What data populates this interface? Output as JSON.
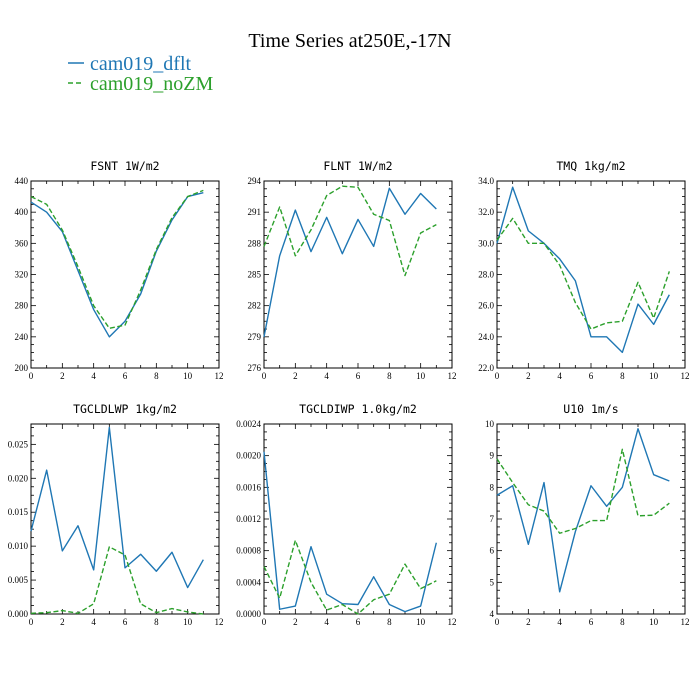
{
  "title": "Time Series at250E,-17N",
  "legend": [
    {
      "label": "cam019_dflt",
      "color": "#1f77b4",
      "dash": "solid"
    },
    {
      "label": "cam019_noZM",
      "color": "#2ca02c",
      "dash": "dashed"
    }
  ],
  "chart_data": [
    {
      "type": "line",
      "title": "FSNT   1W/m2",
      "xlim": [
        0,
        12
      ],
      "xticks": [
        0,
        2,
        4,
        6,
        8,
        10,
        12
      ],
      "ylim": [
        200,
        440
      ],
      "yticks": [
        200,
        240,
        280,
        320,
        360,
        400,
        440
      ],
      "yticklabels": [
        "200",
        "240",
        "280",
        "320",
        "360",
        "400",
        "440"
      ],
      "x": [
        0,
        1,
        2,
        3,
        4,
        5,
        6,
        7,
        8,
        9,
        10,
        11
      ],
      "series": [
        {
          "name": "cam019_dflt",
          "values": [
            413,
            400,
            375,
            325,
            275,
            240,
            260,
            295,
            350,
            390,
            420,
            425
          ]
        },
        {
          "name": "cam019_noZM",
          "values": [
            420,
            410,
            377,
            330,
            280,
            251,
            255,
            300,
            352,
            393,
            420,
            428
          ]
        }
      ]
    },
    {
      "type": "line",
      "title": "FLNT   1W/m2",
      "xlim": [
        0,
        12
      ],
      "xticks": [
        0,
        2,
        4,
        6,
        8,
        10,
        12
      ],
      "ylim": [
        276,
        294
      ],
      "yticks": [
        276,
        279,
        282,
        285,
        288,
        291,
        294
      ],
      "yticklabels": [
        "276",
        "279",
        "282",
        "285",
        "288",
        "291",
        "294"
      ],
      "x": [
        0,
        1,
        2,
        3,
        4,
        5,
        6,
        7,
        8,
        9,
        10,
        11
      ],
      "series": [
        {
          "name": "cam019_dflt",
          "values": [
            279.0,
            286.8,
            291.2,
            287.2,
            290.5,
            287.0,
            290.3,
            287.7,
            293.3,
            290.8,
            292.8,
            291.3
          ]
        },
        {
          "name": "cam019_noZM",
          "values": [
            287.7,
            291.5,
            286.8,
            289.3,
            292.6,
            293.5,
            293.4,
            290.8,
            290.2,
            284.9,
            289.0,
            289.8
          ]
        }
      ]
    },
    {
      "type": "line",
      "title": "TMQ   1kg/m2",
      "xlim": [
        0,
        12
      ],
      "xticks": [
        0,
        2,
        4,
        6,
        8,
        10,
        12
      ],
      "ylim": [
        22,
        34
      ],
      "yticks": [
        22,
        24,
        26,
        28,
        30,
        32,
        34
      ],
      "yticklabels": [
        "22.0",
        "24.0",
        "26.0",
        "28.0",
        "30.0",
        "32.0",
        "34.0"
      ],
      "x": [
        0,
        1,
        2,
        3,
        4,
        5,
        6,
        7,
        8,
        9,
        10,
        11
      ],
      "series": [
        {
          "name": "cam019_dflt",
          "values": [
            30.0,
            33.6,
            30.8,
            30.0,
            29.0,
            27.6,
            24.0,
            24.0,
            23.0,
            26.1,
            24.8,
            26.7
          ]
        },
        {
          "name": "cam019_noZM",
          "values": [
            30.2,
            31.6,
            30.0,
            30.0,
            28.6,
            26.2,
            24.5,
            24.9,
            25.0,
            27.5,
            25.2,
            28.2
          ]
        }
      ]
    },
    {
      "type": "line",
      "title": "TGCLDLWP   1kg/m2",
      "xlim": [
        0,
        12
      ],
      "xticks": [
        0,
        2,
        4,
        6,
        8,
        10,
        12
      ],
      "ylim": [
        0,
        0.028
      ],
      "yticks": [
        0,
        0.005,
        0.01,
        0.015,
        0.02,
        0.025
      ],
      "yticklabels": [
        "0.000",
        "0.005",
        "0.010",
        "0.015",
        "0.020",
        "0.025"
      ],
      "x": [
        0,
        1,
        2,
        3,
        4,
        5,
        6,
        7,
        8,
        9,
        10,
        11
      ],
      "series": [
        {
          "name": "cam019_dflt",
          "values": [
            0.0122,
            0.0212,
            0.0093,
            0.013,
            0.0065,
            0.0275,
            0.0068,
            0.0088,
            0.0063,
            0.0091,
            0.0039,
            0.008
          ]
        },
        {
          "name": "cam019_noZM",
          "values": [
            0.0001,
            0.0002,
            0.0005,
            0.0001,
            0.0015,
            0.0099,
            0.0087,
            0.0015,
            0.0002,
            0.0008,
            0.0003,
            0.0
          ]
        }
      ]
    },
    {
      "type": "line",
      "title": "TGCLDIWP   1.0kg/m2",
      "xlim": [
        0,
        12
      ],
      "xticks": [
        0,
        2,
        4,
        6,
        8,
        10,
        12
      ],
      "ylim": [
        0,
        0.0024
      ],
      "yticks": [
        0,
        0.0004,
        0.0008,
        0.0012,
        0.0016,
        0.002,
        0.0024
      ],
      "yticklabels": [
        "0.0000",
        "0.0004",
        "0.0008",
        "0.0012",
        "0.0016",
        "0.0020",
        "0.0024"
      ],
      "x": [
        0,
        1,
        2,
        3,
        4,
        5,
        6,
        7,
        8,
        9,
        10,
        11
      ],
      "series": [
        {
          "name": "cam019_dflt",
          "values": [
            0.00205,
            6e-05,
            0.0001,
            0.00085,
            0.00025,
            0.00013,
            0.00012,
            0.00047,
            0.00012,
            3e-05,
            0.0001,
            0.0009
          ]
        },
        {
          "name": "cam019_noZM",
          "values": [
            0.0006,
            0.0002,
            0.00093,
            0.0004,
            5e-05,
            0.00012,
            0.0,
            0.00018,
            0.00025,
            0.00063,
            0.00032,
            0.00042
          ]
        }
      ]
    },
    {
      "type": "line",
      "title": "U10   1m/s",
      "xlim": [
        0,
        12
      ],
      "xticks": [
        0,
        2,
        4,
        6,
        8,
        10,
        12
      ],
      "ylim": [
        4,
        10
      ],
      "yticks": [
        4,
        5,
        6,
        7,
        8,
        9,
        10
      ],
      "yticklabels": [
        "4",
        "5",
        "6",
        "7",
        "8",
        "9",
        "10"
      ],
      "x": [
        0,
        1,
        2,
        3,
        4,
        5,
        6,
        7,
        8,
        9,
        10,
        11
      ],
      "series": [
        {
          "name": "cam019_dflt",
          "values": [
            7.75,
            8.05,
            6.2,
            8.15,
            4.7,
            6.6,
            8.05,
            7.4,
            8.0,
            9.85,
            8.4,
            8.2
          ]
        },
        {
          "name": "cam019_noZM",
          "values": [
            8.9,
            8.15,
            7.45,
            7.25,
            6.55,
            6.7,
            6.95,
            6.95,
            9.2,
            7.1,
            7.12,
            7.5
          ]
        }
      ]
    }
  ]
}
